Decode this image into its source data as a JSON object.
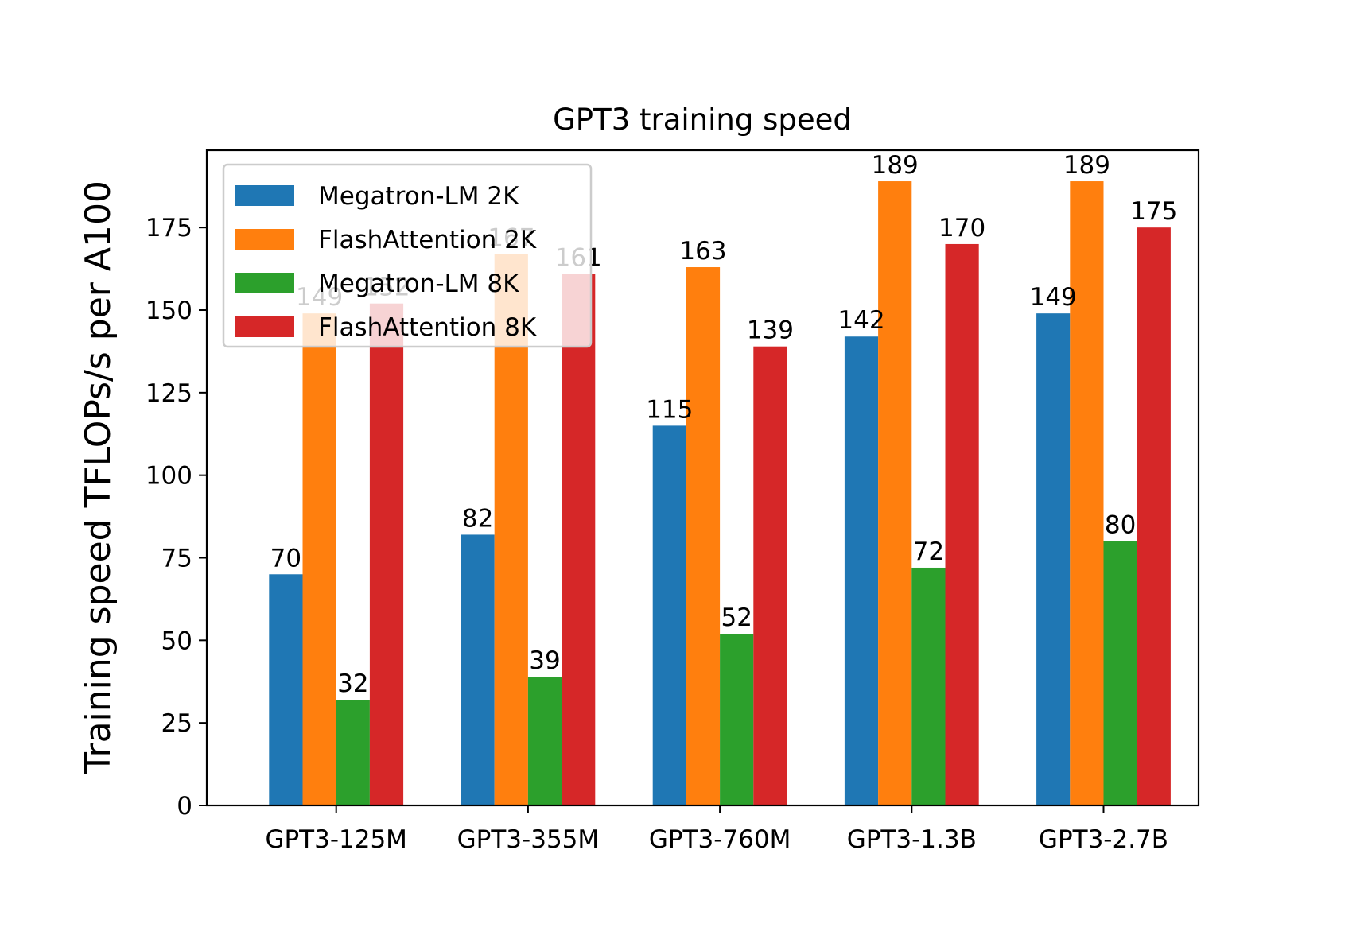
{
  "chart_data": {
    "type": "bar",
    "title": "GPT3 training speed",
    "xlabel": "",
    "ylabel": "Training speed TFLOPs/s per A100",
    "categories": [
      "GPT3-125M",
      "GPT3-355M",
      "GPT3-760M",
      "GPT3-1.3B",
      "GPT3-2.7B"
    ],
    "series": [
      {
        "name": "Megatron-LM 2K",
        "color": "#1f77b4",
        "values": [
          70,
          82,
          115,
          142,
          149
        ]
      },
      {
        "name": "FlashAttention 2K",
        "color": "#ff7f0e",
        "values": [
          149,
          167,
          163,
          189,
          189
        ]
      },
      {
        "name": "Megatron-LM 8K",
        "color": "#2ca02c",
        "values": [
          32,
          39,
          52,
          72,
          80
        ]
      },
      {
        "name": "FlashAttention 8K",
        "color": "#d62728",
        "values": [
          152,
          161,
          139,
          170,
          175
        ]
      }
    ],
    "yticks": [
      0,
      25,
      50,
      75,
      100,
      125,
      150,
      175
    ],
    "ylim": [
      0,
      198.4
    ],
    "grid": false,
    "legend": {
      "placement": "top-left",
      "alpha": 0.8
    }
  }
}
